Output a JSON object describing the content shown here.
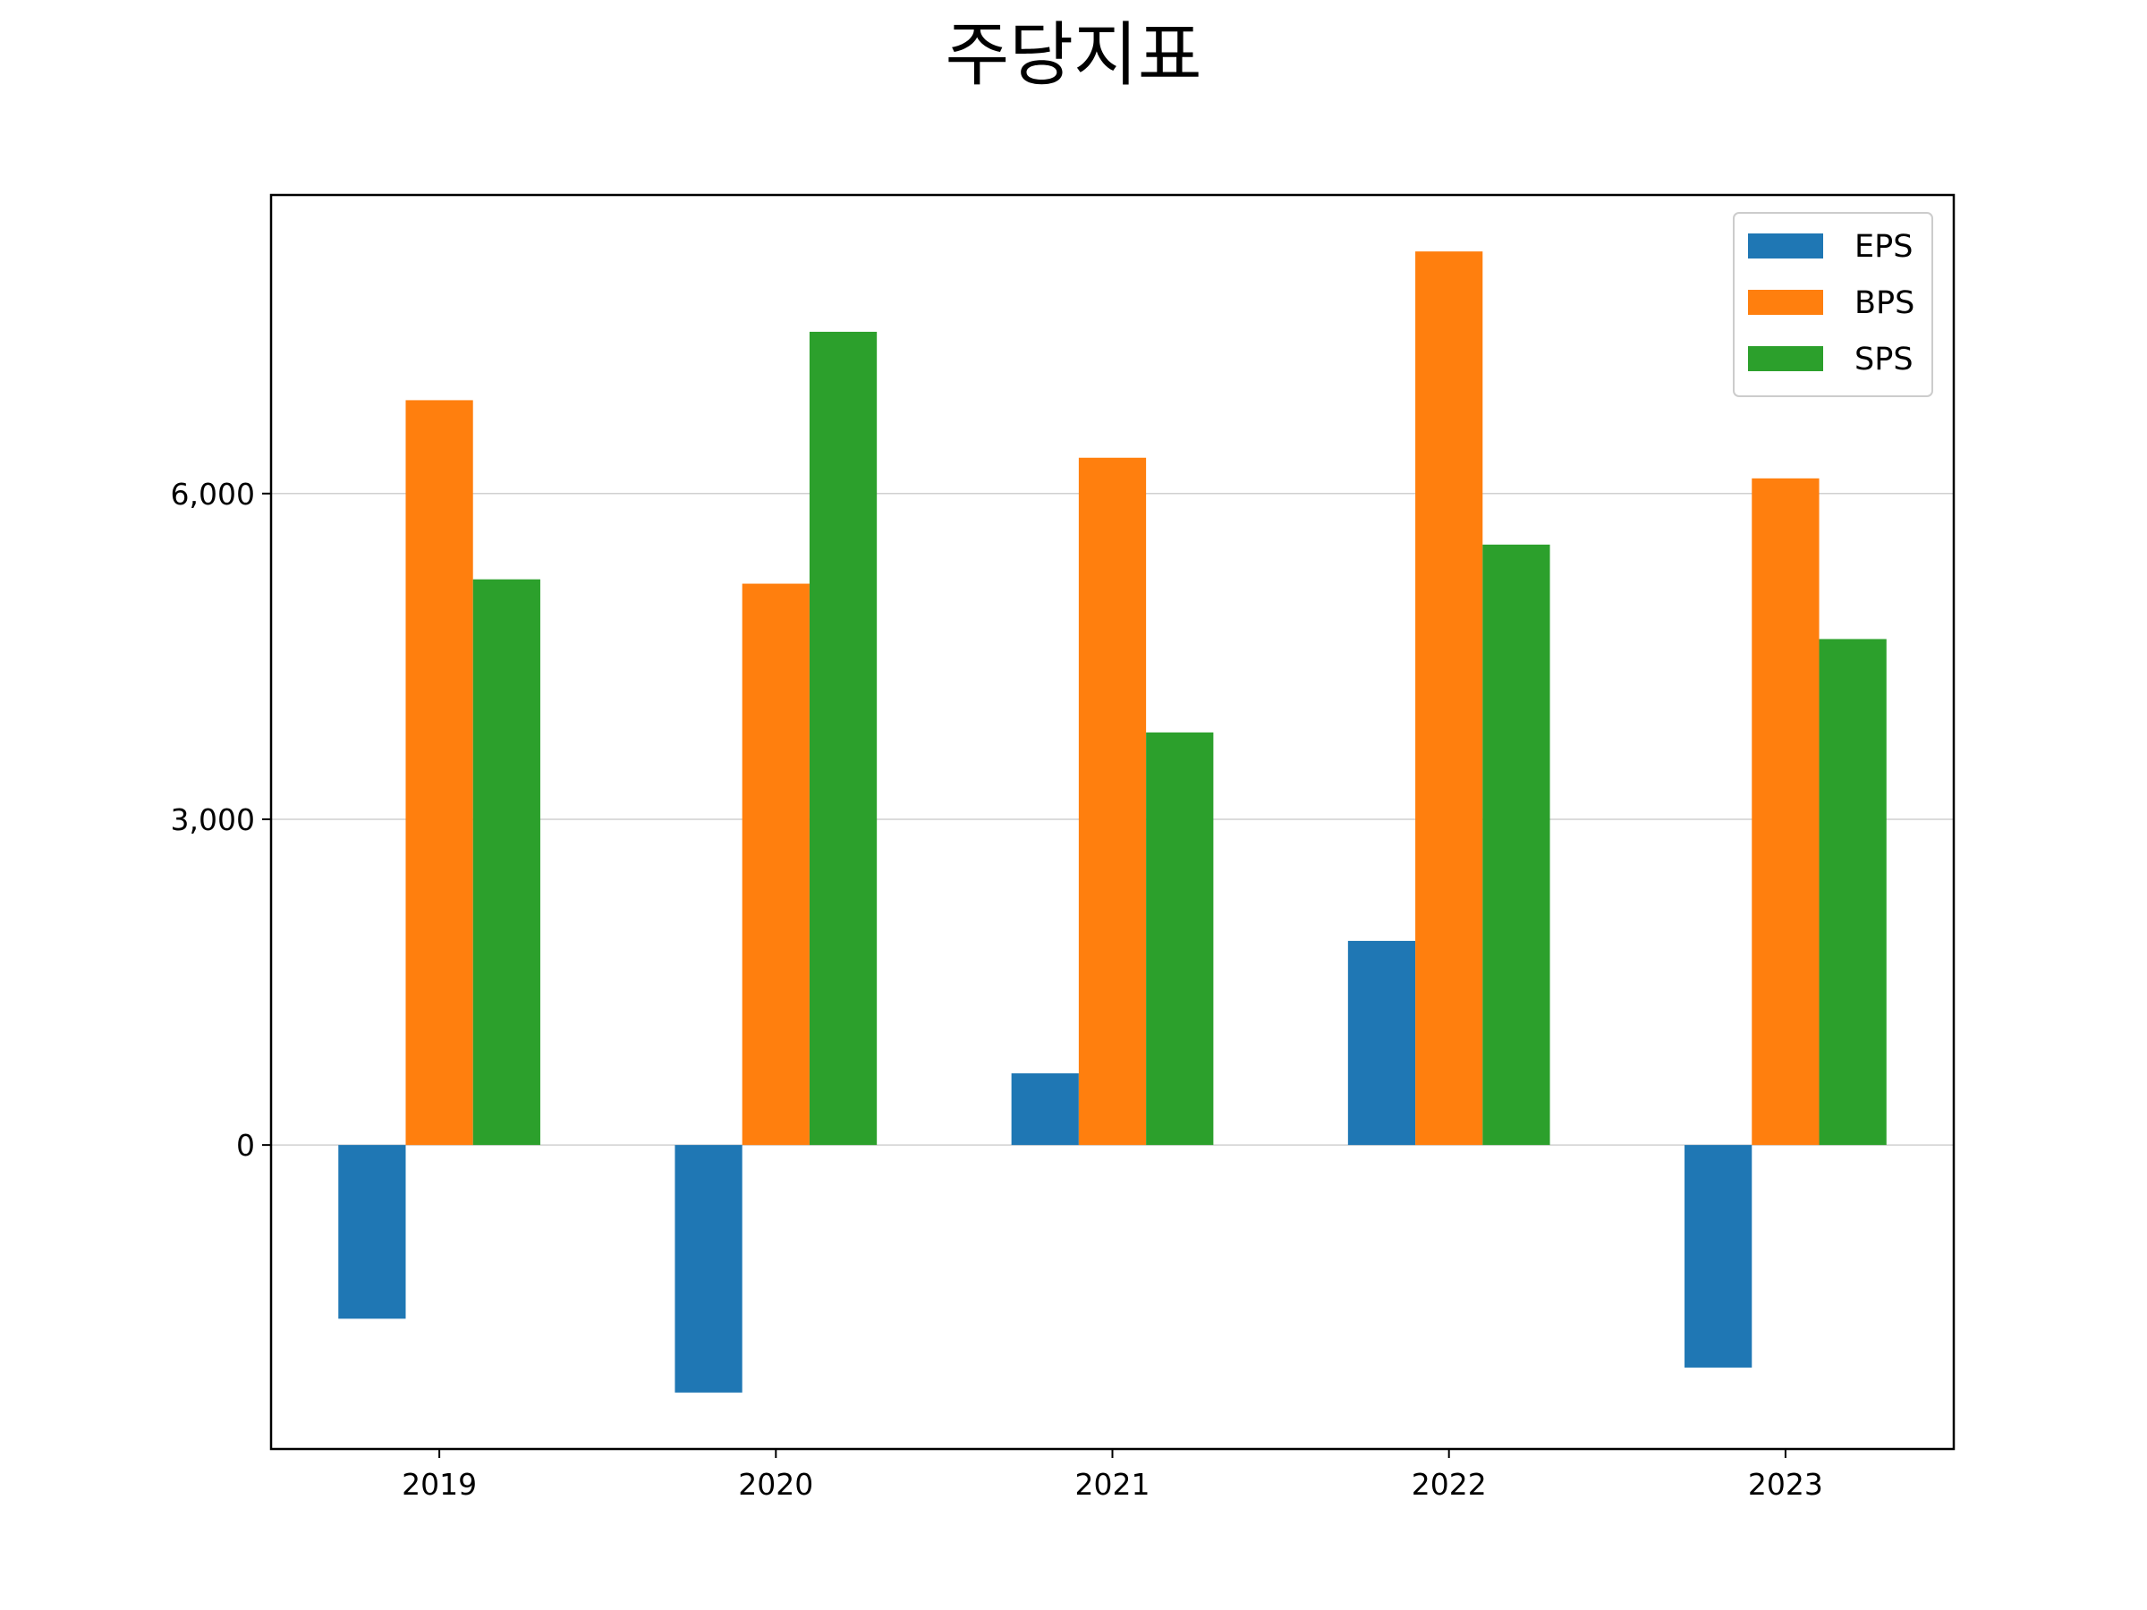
{
  "chart_data": {
    "type": "bar",
    "title": "주당지표",
    "xlabel": "",
    "ylabel": "",
    "categories": [
      "2019",
      "2020",
      "2021",
      "2022",
      "2023"
    ],
    "series": [
      {
        "name": "EPS",
        "color": "#1f77b4",
        "values": [
          -1600,
          -2280,
          660,
          1880,
          -2050
        ]
      },
      {
        "name": "BPS",
        "color": "#ff7f0e",
        "values": [
          6860,
          5170,
          6330,
          8230,
          6140
        ]
      },
      {
        "name": "SPS",
        "color": "#2ca02c",
        "values": [
          5210,
          7490,
          3800,
          5530,
          4660
        ]
      }
    ],
    "ylim": [
      -2800,
      8750
    ],
    "yticks": [
      0,
      3000,
      6000
    ],
    "ytick_labels": [
      "0",
      "3,000",
      "6,000"
    ],
    "grid": "y",
    "legend_position": "upper-right"
  }
}
